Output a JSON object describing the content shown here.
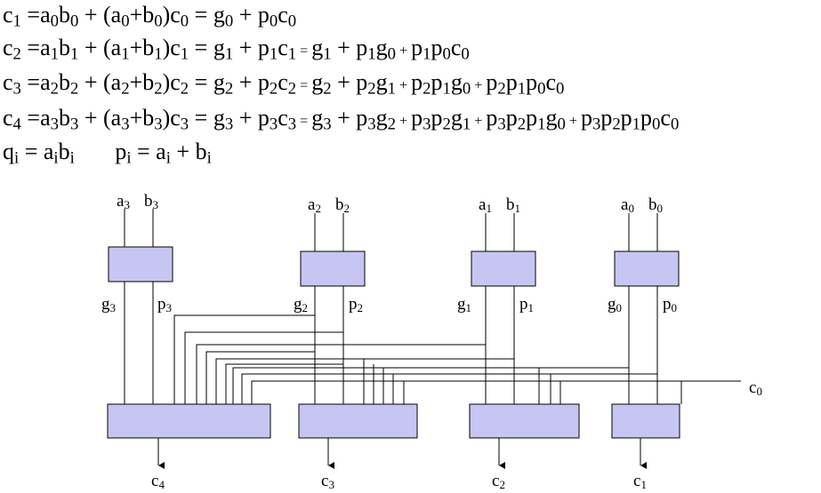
{
  "equations": {
    "line1": [
      {
        "t": "c"
      },
      {
        "s": "1"
      },
      {
        "t": " =a"
      },
      {
        "s": "0"
      },
      {
        "t": "b"
      },
      {
        "s": "0"
      },
      {
        "t": " + (a"
      },
      {
        "s": "0"
      },
      {
        "t": "+b"
      },
      {
        "s": "0"
      },
      {
        "t": ")c"
      },
      {
        "s": "0"
      },
      {
        "t": " = g"
      },
      {
        "s": "0"
      },
      {
        "t": " + p"
      },
      {
        "s": "0"
      },
      {
        "t": "c"
      },
      {
        "s": "0"
      }
    ],
    "line2": [
      {
        "t": "c"
      },
      {
        "s": "2"
      },
      {
        "t": " =a"
      },
      {
        "s": "1"
      },
      {
        "t": "b"
      },
      {
        "s": "1"
      },
      {
        "t": " + (a"
      },
      {
        "s": "1"
      },
      {
        "t": "+b"
      },
      {
        "s": "1"
      },
      {
        "t": ")c"
      },
      {
        "s": "1"
      },
      {
        "t": " = g"
      },
      {
        "s": "1"
      },
      {
        "t": " + p"
      },
      {
        "s": "1"
      },
      {
        "t": "c"
      },
      {
        "s": "1"
      },
      {
        "m": " = "
      },
      {
        "t": "g"
      },
      {
        "s": "1"
      },
      {
        "t": " + p"
      },
      {
        "s": "1"
      },
      {
        "t": "g"
      },
      {
        "s": "0"
      },
      {
        "m": " + "
      },
      {
        "t": "p"
      },
      {
        "s": "1"
      },
      {
        "t": "p"
      },
      {
        "s": "0"
      },
      {
        "t": "c"
      },
      {
        "s": "0"
      }
    ],
    "line3": [
      {
        "t": "c"
      },
      {
        "s": "3"
      },
      {
        "t": " =a"
      },
      {
        "s": "2"
      },
      {
        "t": "b"
      },
      {
        "s": "2"
      },
      {
        "t": " + (a"
      },
      {
        "s": "2"
      },
      {
        "t": "+b"
      },
      {
        "s": "2"
      },
      {
        "t": ")c"
      },
      {
        "s": "2"
      },
      {
        "t": " = g"
      },
      {
        "s": "2"
      },
      {
        "t": " + p"
      },
      {
        "s": "2"
      },
      {
        "t": "c"
      },
      {
        "s": "2"
      },
      {
        "m": " = "
      },
      {
        "t": "g"
      },
      {
        "s": "2"
      },
      {
        "t": " + p"
      },
      {
        "s": "2"
      },
      {
        "t": "g"
      },
      {
        "s": "1"
      },
      {
        "m": " + "
      },
      {
        "t": "p"
      },
      {
        "s": "2"
      },
      {
        "t": "p"
      },
      {
        "s": "1"
      },
      {
        "t": "g"
      },
      {
        "s": "0"
      },
      {
        "m": " + "
      },
      {
        "t": "p"
      },
      {
        "s": "2"
      },
      {
        "t": "p"
      },
      {
        "s": "1"
      },
      {
        "t": "p"
      },
      {
        "s": "0"
      },
      {
        "t": "c"
      },
      {
        "s": "0"
      }
    ],
    "line4": [
      {
        "t": "c"
      },
      {
        "s": "4"
      },
      {
        "t": " =a"
      },
      {
        "s": "3"
      },
      {
        "t": "b"
      },
      {
        "s": "3"
      },
      {
        "t": " + (a"
      },
      {
        "s": "3"
      },
      {
        "t": "+b"
      },
      {
        "s": "3"
      },
      {
        "t": ")c"
      },
      {
        "s": "3"
      },
      {
        "t": " = g"
      },
      {
        "s": "3"
      },
      {
        "t": " + p"
      },
      {
        "s": "3"
      },
      {
        "t": "c"
      },
      {
        "s": "3"
      },
      {
        "m": " = "
      },
      {
        "t": "g"
      },
      {
        "s": "3"
      },
      {
        "t": " + p"
      },
      {
        "s": "3"
      },
      {
        "t": "g"
      },
      {
        "s": "2"
      },
      {
        "m": " + "
      },
      {
        "t": "p"
      },
      {
        "s": "3"
      },
      {
        "t": "p"
      },
      {
        "s": "2"
      },
      {
        "t": "g"
      },
      {
        "s": "1"
      },
      {
        "m": " + "
      },
      {
        "t": "p"
      },
      {
        "s": "3"
      },
      {
        "t": "p"
      },
      {
        "s": "2"
      },
      {
        "t": "p"
      },
      {
        "s": "1"
      },
      {
        "t": "g"
      },
      {
        "s": "0"
      },
      {
        "m": " + "
      },
      {
        "t": "p"
      },
      {
        "s": "3"
      },
      {
        "t": "p"
      },
      {
        "s": "2"
      },
      {
        "t": "p"
      },
      {
        "s": "1"
      },
      {
        "t": "p"
      },
      {
        "s": "0"
      },
      {
        "t": "c"
      },
      {
        "s": "0"
      }
    ],
    "line5": [
      {
        "t": "q"
      },
      {
        "s": "i"
      },
      {
        "t": " = a"
      },
      {
        "s": "i"
      },
      {
        "t": "b"
      },
      {
        "s": "i"
      },
      {
        "t": "       p"
      },
      {
        "s": "i"
      },
      {
        "t": " = a"
      },
      {
        "s": "i"
      },
      {
        "t": " + b"
      },
      {
        "s": "i"
      }
    ]
  },
  "circuit": {
    "box_fill": "#c7c6f2",
    "inputs": [
      {
        "a": "a",
        "a_sub": "3",
        "b": "b",
        "b_sub": "3"
      },
      {
        "a": "a",
        "a_sub": "2",
        "b": "b",
        "b_sub": "2"
      },
      {
        "a": "a",
        "a_sub": "1",
        "b": "b",
        "b_sub": "1"
      },
      {
        "a": "a",
        "a_sub": "0",
        "b": "b",
        "b_sub": "0"
      }
    ],
    "gp_labels": [
      {
        "g": "g",
        "g_sub": "3",
        "p": "p",
        "p_sub": "3"
      },
      {
        "g": "g",
        "g_sub": "2",
        "p": "p",
        "p_sub": "2"
      },
      {
        "g": "g",
        "g_sub": "1",
        "p": "p",
        "p_sub": "1"
      },
      {
        "g": "g",
        "g_sub": "0",
        "p": "p",
        "p_sub": "0"
      }
    ],
    "carry_in": {
      "base": "c",
      "sub": "0"
    },
    "outputs": [
      {
        "base": "c",
        "sub": "4"
      },
      {
        "base": "c",
        "sub": "3"
      },
      {
        "base": "c",
        "sub": "2"
      },
      {
        "base": "c",
        "sub": "1"
      }
    ]
  }
}
